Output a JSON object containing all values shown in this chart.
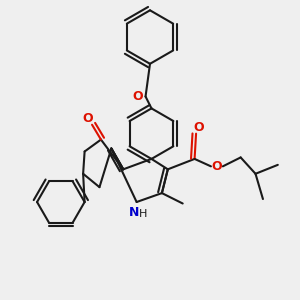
{
  "bg_color": "#efefef",
  "bond_color": "#1a1a1a",
  "o_color": "#dd1100",
  "n_color": "#0000cc",
  "line_width": 1.5,
  "dbo": 0.012,
  "figsize": [
    3.0,
    3.0
  ],
  "dpi": 100,
  "xlim": [
    0,
    10
  ],
  "ylim": [
    0,
    10
  ]
}
